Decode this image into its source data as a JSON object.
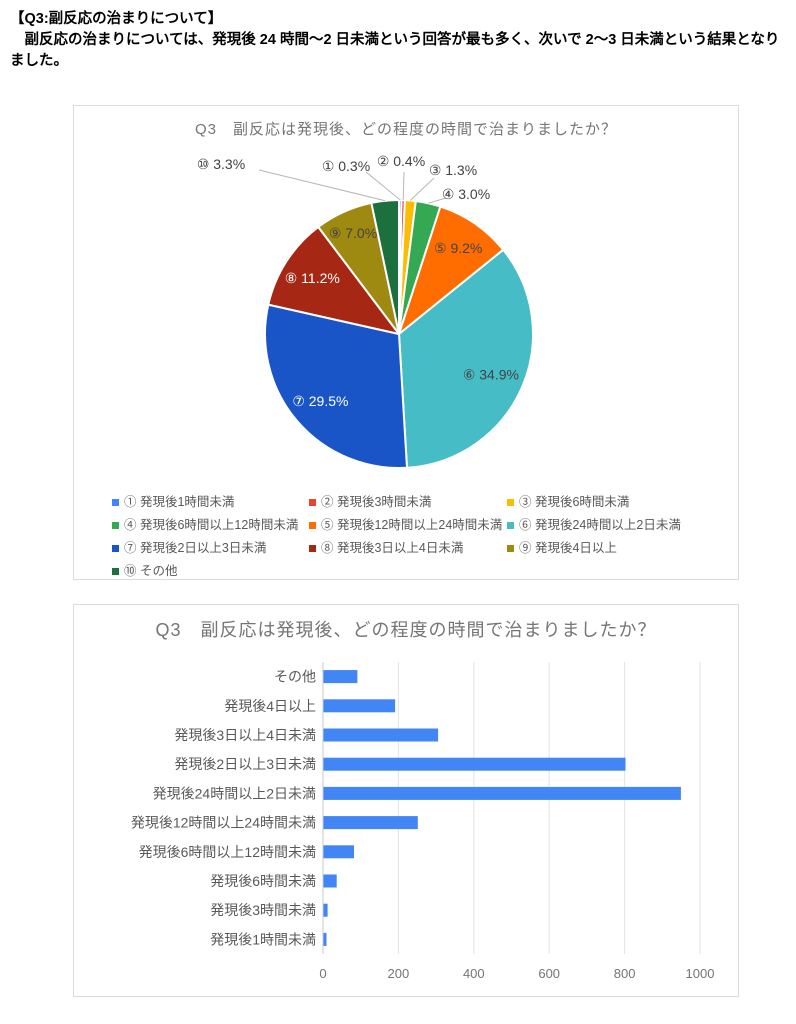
{
  "document": {
    "heading": "【Q3:副反応の治まりについて】",
    "paragraph": "　副反応の治まりについては、発現後 24 時間～2 日未満という回答が最も多く、次いで 2～3 日未満という結果となりました。"
  },
  "chart_data": [
    {
      "type": "pie",
      "title": "Q3　副反応は発現後、どの程度の時間で治まりましたか？",
      "unit": "%",
      "legend_position": "bottom",
      "slices": [
        {
          "num": "①",
          "label": "発現後1時間未満",
          "pct": 0.3,
          "color": "#4285F4"
        },
        {
          "num": "②",
          "label": "発現後3時間未満",
          "pct": 0.4,
          "color": "#EA4335"
        },
        {
          "num": "③",
          "label": "発現後6時間未満",
          "pct": 1.3,
          "color": "#FBBC04"
        },
        {
          "num": "④",
          "label": "発現後6時間以上12時間未満",
          "pct": 3.0,
          "color": "#34A853"
        },
        {
          "num": "⑤",
          "label": "発現後12時間以上24時間未満",
          "pct": 9.2,
          "color": "#FF6D01"
        },
        {
          "num": "⑥",
          "label": "発現後24時間以上2日未満",
          "pct": 34.9,
          "color": "#46BDC6"
        },
        {
          "num": "⑦",
          "label": "発現後2日以上3日未満",
          "pct": 29.5,
          "color": "#1A55C8"
        },
        {
          "num": "⑧",
          "label": "発現後3日以上4日未満",
          "pct": 11.2,
          "color": "#A52714"
        },
        {
          "num": "⑨",
          "label": "発現後4日以上",
          "pct": 7.0,
          "color": "#9E8A10"
        },
        {
          "num": "⑩",
          "label": "その他",
          "pct": 3.3,
          "color": "#1B703E"
        }
      ]
    },
    {
      "type": "bar",
      "orientation": "horizontal",
      "title": "Q3　副反応は発現後、どの程度の時間で治まりましたか？",
      "categories": [
        "その他",
        "発現後4日以上",
        "発現後3日以上4日未満",
        "発現後2日以上3日未満",
        "発現後24時間以上2日未満",
        "発現後12時間以上24時間未満",
        "発現後6時間以上12時間未満",
        "発現後6時間未満",
        "発現後3時間未満",
        "発現後1時間未満"
      ],
      "values": [
        90,
        190,
        304,
        801,
        948,
        250,
        81,
        35,
        11,
        8
      ],
      "xlim": [
        0,
        1000
      ],
      "x_ticks": [
        0,
        200,
        400,
        600,
        800,
        1000
      ],
      "grid": "vertical",
      "bar_color": "#4285F4"
    }
  ]
}
